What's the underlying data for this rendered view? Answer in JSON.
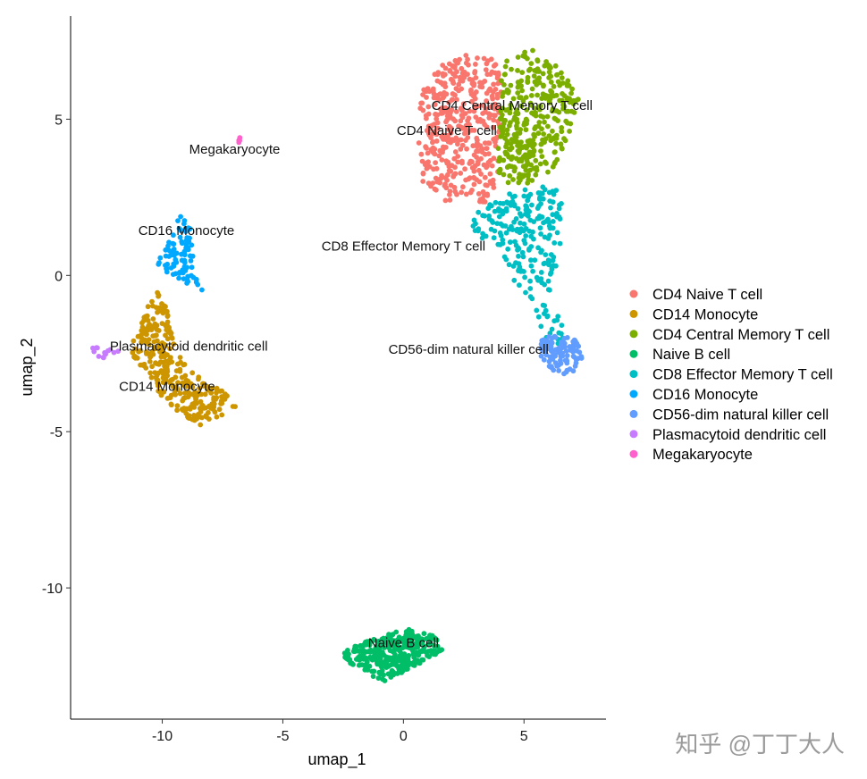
{
  "chart_data": {
    "type": "scatter",
    "title": "",
    "xlabel": "umap_1",
    "ylabel": "umap_2",
    "xlim": [
      -13.8,
      8.4
    ],
    "ylim": [
      -14.2,
      8.3
    ],
    "xticks": [
      -10,
      -5,
      0,
      5
    ],
    "yticks": [
      5,
      0,
      -5,
      -10
    ],
    "grid": false,
    "legend_position": "right",
    "series": [
      {
        "name": "CD4 Naive T cell",
        "color": "#F8766D",
        "count": 420,
        "shape": [
          [
            0.7,
            5.8
          ],
          [
            1.5,
            6.7
          ],
          [
            2.7,
            7.1
          ],
          [
            3.8,
            6.9
          ],
          [
            4.2,
            6.0
          ],
          [
            4.0,
            4.6
          ],
          [
            3.9,
            3.0
          ],
          [
            3.3,
            2.2
          ],
          [
            2.6,
            2.6
          ],
          [
            1.9,
            2.3
          ],
          [
            0.8,
            2.9
          ],
          [
            0.6,
            4.2
          ]
        ],
        "label": "CD4 Naive T cell",
        "label_at": [
          1.8,
          4.5
        ]
      },
      {
        "name": "CD14 Monocyte",
        "color": "#CD9600",
        "count": 300,
        "shape": [
          [
            -10.2,
            -0.5
          ],
          [
            -9.6,
            -1.3
          ],
          [
            -9.5,
            -2.3
          ],
          [
            -8.9,
            -3.0
          ],
          [
            -7.6,
            -3.6
          ],
          [
            -6.9,
            -4.2
          ],
          [
            -7.6,
            -4.5
          ],
          [
            -8.4,
            -4.8
          ],
          [
            -9.3,
            -4.5
          ],
          [
            -10.0,
            -3.9
          ],
          [
            -10.8,
            -3.0
          ],
          [
            -11.4,
            -2.4
          ],
          [
            -11.0,
            -1.8
          ],
          [
            -10.6,
            -1.0
          ]
        ],
        "label": "CD14 Monocyte",
        "label_at": [
          -9.8,
          -3.7
        ]
      },
      {
        "name": "CD4 Central Memory T cell",
        "color": "#7CAE00",
        "count": 330,
        "shape": [
          [
            4.0,
            6.8
          ],
          [
            5.5,
            7.3
          ],
          [
            6.4,
            6.8
          ],
          [
            7.3,
            5.7
          ],
          [
            7.0,
            5.0
          ],
          [
            6.7,
            3.9
          ],
          [
            6.1,
            3.3
          ],
          [
            5.0,
            2.9
          ],
          [
            4.0,
            2.8
          ],
          [
            3.9,
            4.3
          ],
          [
            4.1,
            5.8
          ]
        ],
        "label": "CD4 Central Memory T cell",
        "label_at": [
          4.5,
          5.3
        ]
      },
      {
        "name": "Naive B cell",
        "color": "#00BE67",
        "count": 330,
        "shape": [
          [
            -2.5,
            -12.0
          ],
          [
            -1.5,
            -11.7
          ],
          [
            0.0,
            -11.3
          ],
          [
            1.3,
            -11.5
          ],
          [
            1.6,
            -12.0
          ],
          [
            0.8,
            -12.4
          ],
          [
            0.0,
            -12.7
          ],
          [
            -0.8,
            -13.0
          ],
          [
            -1.7,
            -12.7
          ],
          [
            -2.4,
            -12.3
          ]
        ],
        "label": "Naive B cell",
        "label_at": [
          0.0,
          -11.9
        ]
      },
      {
        "name": "CD8 Effector Memory T cell",
        "color": "#00BFC4",
        "count": 230,
        "shape": [
          [
            3.0,
            2.0
          ],
          [
            4.0,
            2.5
          ],
          [
            5.3,
            2.9
          ],
          [
            6.3,
            2.8
          ],
          [
            6.6,
            2.2
          ],
          [
            6.5,
            1.0
          ],
          [
            6.2,
            -0.4
          ],
          [
            6.5,
            -1.3
          ],
          [
            6.9,
            -1.8
          ],
          [
            6.6,
            -2.3
          ],
          [
            5.7,
            -1.9
          ],
          [
            5.4,
            -0.9
          ],
          [
            4.6,
            -0.2
          ],
          [
            4.0,
            0.8
          ],
          [
            3.3,
            1.1
          ],
          [
            2.8,
            1.6
          ]
        ],
        "label": "CD8 Effector Memory T cell",
        "label_at": [
          0.0,
          0.8
        ]
      },
      {
        "name": "CD16 Monocyte",
        "color": "#00A9FF",
        "count": 85,
        "shape": [
          [
            -9.8,
            1.2
          ],
          [
            -9.1,
            2.1
          ],
          [
            -8.7,
            1.3
          ],
          [
            -8.7,
            0.2
          ],
          [
            -8.2,
            -0.5
          ],
          [
            -8.8,
            -0.4
          ],
          [
            -9.6,
            0.0
          ],
          [
            -10.2,
            0.3
          ]
        ],
        "label": "CD16 Monocyte",
        "label_at": [
          -9.0,
          1.3
        ]
      },
      {
        "name": "CD56-dim natural killer cell",
        "color": "#619CFF",
        "count": 110,
        "shape": [
          [
            5.7,
            -2.0
          ],
          [
            6.4,
            -1.9
          ],
          [
            7.3,
            -2.1
          ],
          [
            7.5,
            -2.7
          ],
          [
            6.9,
            -3.2
          ],
          [
            6.1,
            -3.1
          ],
          [
            5.7,
            -2.6
          ]
        ],
        "label": "CD56-dim natural killer cell",
        "label_at": [
          2.7,
          -2.5
        ]
      },
      {
        "name": "Plasmacytoid dendritic cell",
        "color": "#C77CFF",
        "count": 14,
        "shape": [
          [
            -12.9,
            -2.3
          ],
          [
            -12.0,
            -2.3
          ],
          [
            -11.7,
            -2.5
          ],
          [
            -12.5,
            -2.7
          ],
          [
            -12.9,
            -2.5
          ]
        ],
        "label": "Plasmacytoid dendritic cell",
        "label_at": [
          -8.9,
          -2.4
        ]
      },
      {
        "name": "Megakaryocyte",
        "color": "#FF61CC",
        "count": 4,
        "shape": [
          [
            -6.9,
            4.3
          ],
          [
            -6.7,
            4.5
          ],
          [
            -6.6,
            4.4
          ],
          [
            -6.8,
            4.2
          ]
        ],
        "label": "Megakaryocyte",
        "label_at": [
          -7.0,
          3.9
        ]
      }
    ]
  },
  "watermark": "知乎 @丁丁大人"
}
